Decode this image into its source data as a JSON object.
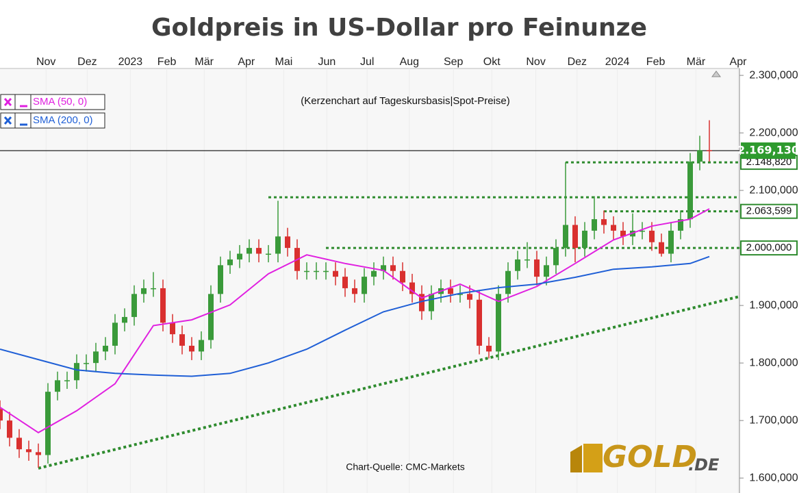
{
  "chart_data": {
    "type": "candlestick",
    "title": "Goldpreis in US-Dollar pro Feinunze",
    "subtitle": "(Kerzenchart auf Tageskursbasis|Spot-Preise)",
    "source": "Chart-Quelle: CMC-Markets",
    "logo": [
      "GOLD",
      ".DE"
    ],
    "up_color": "#3a9a3a",
    "down_color": "#d9302f",
    "open": [
      1720,
      1700,
      1670,
      1650,
      1645,
      1640,
      1750,
      1770,
      1770,
      1800,
      1800,
      1820,
      1830,
      1870,
      1880,
      1920,
      1930,
      1930,
      1870,
      1850,
      1830,
      1820,
      1840,
      1920,
      1970,
      1980,
      1990,
      2000,
      1990,
      1990,
      2020,
      2000,
      1960,
      1960,
      1960,
      1960,
      1950,
      1930,
      1920,
      1950,
      1960,
      1970,
      1960,
      1940,
      1920,
      1890,
      1920,
      1930,
      1920,
      1920,
      1910,
      1830,
      1820,
      1920,
      1960,
      1980,
      1980,
      1950,
      1970,
      2000,
      2040,
      2000,
      2030,
      2050,
      2040,
      2030,
      2020,
      2030,
      2030,
      2010,
      1990,
      2030,
      2050,
      2150,
      2170
    ],
    "high": [
      1735,
      1715,
      1685,
      1665,
      1660,
      1765,
      1785,
      1785,
      1815,
      1815,
      1835,
      1845,
      1885,
      1895,
      1935,
      1945,
      1958,
      1945,
      1885,
      1865,
      1845,
      1855,
      1935,
      1985,
      1995,
      2005,
      2015,
      2015,
      2005,
      2082,
      2035,
      2015,
      1975,
      1975,
      1975,
      1975,
      1965,
      1945,
      1965,
      1975,
      1985,
      1985,
      1975,
      1955,
      1935,
      1935,
      1945,
      1945,
      1935,
      1935,
      1925,
      1845,
      1935,
      1975,
      1995,
      2010,
      1995,
      1985,
      2015,
      2149,
      2055,
      2045,
      2090,
      2065,
      2055,
      2045,
      2060,
      2045,
      2045,
      2025,
      2045,
      2065,
      2165,
      2195,
      2222
    ],
    "low": [
      1685,
      1655,
      1635,
      1630,
      1618,
      1625,
      1735,
      1755,
      1755,
      1785,
      1785,
      1805,
      1815,
      1855,
      1865,
      1905,
      1915,
      1855,
      1835,
      1815,
      1805,
      1805,
      1825,
      1905,
      1955,
      1965,
      1975,
      1975,
      1975,
      1975,
      1985,
      1945,
      1945,
      1945,
      1945,
      1935,
      1915,
      1905,
      1905,
      1935,
      1945,
      1945,
      1925,
      1905,
      1875,
      1875,
      1905,
      1905,
      1905,
      1895,
      1815,
      1808,
      1805,
      1905,
      1945,
      1965,
      1935,
      1935,
      1955,
      1985,
      1975,
      1985,
      2015,
      2025,
      2015,
      2005,
      2005,
      2015,
      1995,
      1985,
      1975,
      2015,
      2035,
      2135,
      2150
    ],
    "close": [
      1700,
      1670,
      1650,
      1645,
      1640,
      1750,
      1770,
      1770,
      1800,
      1800,
      1820,
      1830,
      1870,
      1880,
      1920,
      1930,
      1930,
      1870,
      1850,
      1830,
      1820,
      1840,
      1920,
      1970,
      1980,
      1990,
      2000,
      1990,
      1990,
      2020,
      2000,
      1960,
      1960,
      1960,
      1960,
      1950,
      1930,
      1920,
      1950,
      1960,
      1970,
      1960,
      1940,
      1920,
      1890,
      1920,
      1930,
      1920,
      1920,
      1910,
      1830,
      1820,
      1920,
      1960,
      1980,
      1980,
      1950,
      1970,
      2000,
      2040,
      2000,
      2030,
      2050,
      2040,
      2030,
      2020,
      2030,
      2030,
      2010,
      1990,
      2030,
      2050,
      2150,
      2170,
      2169
    ],
    "series": [
      {
        "name": "SMA (50, 0)",
        "color": "#e020e0",
        "x": [
          0,
          4,
          8,
          12,
          16,
          20,
          24,
          28,
          32,
          36,
          40,
          44,
          48,
          52,
          56,
          60,
          64,
          68,
          72,
          74
        ],
        "values": [
          1723,
          1679,
          1717,
          1764,
          1865,
          1875,
          1901,
          1955,
          1988,
          1973,
          1961,
          1913,
          1937,
          1907,
          1933,
          1973,
          2014,
          2038,
          2050,
          2068
        ]
      },
      {
        "name": "SMA (200, 0)",
        "color": "#1f5fd6",
        "x": [
          0,
          4,
          8,
          12,
          16,
          20,
          24,
          28,
          32,
          36,
          40,
          44,
          48,
          52,
          56,
          60,
          64,
          68,
          72,
          74
        ],
        "values": [
          1824,
          1806,
          1788,
          1782,
          1779,
          1777,
          1782,
          1800,
          1824,
          1857,
          1889,
          1907,
          1921,
          1931,
          1937,
          1949,
          1963,
          1967,
          1973,
          1985
        ]
      }
    ],
    "levels": [
      {
        "value": 2148.82,
        "label": "2.148,820",
        "from": 59
      },
      {
        "value": 2088,
        "from": 28
      },
      {
        "value": 2063.599,
        "label": "2.063,599",
        "from": 63
      },
      {
        "value": 2000,
        "label": "2.000,000",
        "from": 34
      }
    ],
    "trendline": {
      "x": [
        4,
        77
      ],
      "values": [
        1617,
        1915
      ]
    },
    "last_price": {
      "value": 2169.13,
      "label": "2.169,130"
    },
    "xlim": [
      0,
      77
    ],
    "xticks": [
      {
        "value": 4.8,
        "label": "Nov"
      },
      {
        "value": 9.1,
        "label": "Dez"
      },
      {
        "value": 13.6,
        "label": "2023"
      },
      {
        "value": 17.4,
        "label": "Feb"
      },
      {
        "value": 21.3,
        "label": "Mär"
      },
      {
        "value": 25.7,
        "label": "Apr"
      },
      {
        "value": 29.6,
        "label": "Mai"
      },
      {
        "value": 34.1,
        "label": "Jun"
      },
      {
        "value": 38.3,
        "label": "Jul"
      },
      {
        "value": 42.7,
        "label": "Aug"
      },
      {
        "value": 47.3,
        "label": "Sep"
      },
      {
        "value": 51.3,
        "label": "Okt"
      },
      {
        "value": 55.9,
        "label": "Nov"
      },
      {
        "value": 60.2,
        "label": "Dez"
      },
      {
        "value": 64.4,
        "label": "2024"
      },
      {
        "value": 68.4,
        "label": "Feb"
      },
      {
        "value": 72.6,
        "label": "Mär"
      },
      {
        "value": 77,
        "label": "Apr"
      }
    ],
    "ylim": [
      1574,
      2312
    ],
    "yticks": [
      {
        "value": 1600,
        "label": "1.600,000"
      },
      {
        "value": 1700,
        "label": "1.700,000"
      },
      {
        "value": 1800,
        "label": "1.800,000"
      },
      {
        "value": 1900,
        "label": "1.900,000"
      },
      {
        "value": 2000,
        "label": "2.000,000"
      },
      {
        "value": 2100,
        "label": "2.100,000"
      },
      {
        "value": 2200,
        "label": "2.200,000"
      },
      {
        "value": 2300,
        "label": "2.300,000"
      }
    ]
  }
}
